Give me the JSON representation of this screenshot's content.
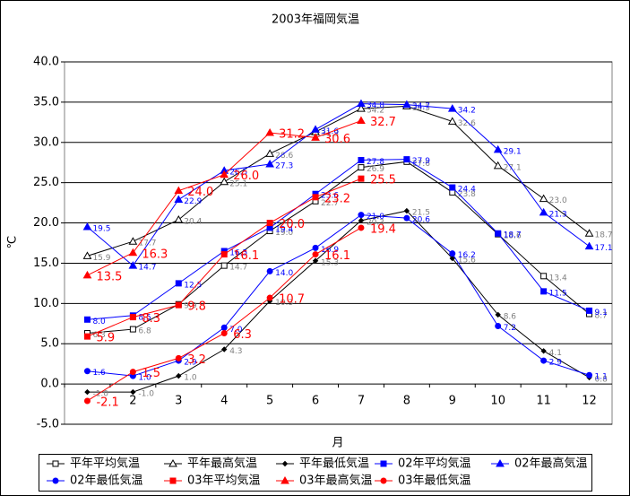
{
  "chart_data": {
    "type": "line",
    "title": "2003年福岡気温",
    "y_label": "℃",
    "x_label": "月",
    "categories": [
      null,
      "2",
      "3",
      "4",
      "5",
      "6",
      "7",
      "8",
      "9",
      "10",
      "11",
      "12"
    ],
    "ylim": [
      -5,
      40
    ],
    "yticks": [
      {
        "value": -5,
        "label": "-5.0"
      },
      {
        "value": 0,
        "label": "0.0"
      },
      {
        "value": 5,
        "label": "5.0"
      },
      {
        "value": 10,
        "label": "10.0"
      },
      {
        "value": 15,
        "label": "15.0"
      },
      {
        "value": 20,
        "label": "20.0"
      },
      {
        "value": 25,
        "label": "25.0"
      },
      {
        "value": 30,
        "label": "30.0"
      },
      {
        "value": 35,
        "label": "35.0"
      },
      {
        "value": 40,
        "label": "40.0"
      }
    ],
    "grid": true,
    "series": [
      {
        "name": "平年平均気温",
        "color": "#000000",
        "marker": "square-open",
        "values": [
          6.3,
          6.8,
          9.9,
          14.7,
          19.0,
          22.7,
          26.9,
          27.6,
          23.8,
          18.6,
          13.4,
          8.7
        ],
        "value_labels": [
          "6.3",
          "6.8",
          "9.9",
          "14.7",
          "19.0",
          "22.7",
          "26.9",
          "27.6",
          "23.8",
          "18.6",
          "13.4",
          "8.7"
        ]
      },
      {
        "name": "平年最高気温",
        "color": "#000000",
        "marker": "triangle-open",
        "values": [
          15.9,
          17.7,
          20.4,
          25.1,
          28.6,
          31.3,
          34.2,
          34.5,
          32.6,
          27.1,
          23.0,
          18.7
        ],
        "value_labels": [
          "15.9",
          "17.7",
          "20.4",
          "25.1",
          "28.6",
          "31.3",
          "34.2",
          "34.5",
          "32.6",
          "27.1",
          "23.0",
          "18.7"
        ]
      },
      {
        "name": "平年最低気温",
        "color": "#000000",
        "marker": "diamond",
        "values": [
          -1.0,
          -1.0,
          1.0,
          4.3,
          10.3,
          15.3,
          20.3,
          21.5,
          15.6,
          8.6,
          4.1,
          0.8
        ],
        "value_labels": [
          "-1.0",
          "-1.0",
          "1.0",
          "4.3",
          "10.3",
          "15.3",
          "20.3",
          "21.5",
          "15.6",
          "8.6",
          "4.1",
          "0.8"
        ]
      },
      {
        "name": "02年平均気温",
        "color": "#0000ff",
        "marker": "square",
        "values": [
          8.0,
          8.5,
          12.5,
          16.5,
          19.4,
          23.6,
          27.8,
          27.9,
          24.4,
          18.7,
          11.5,
          9.1
        ],
        "value_labels": [
          "8.0",
          "8.5",
          "12.5",
          "16.5",
          "19.4",
          "23.6",
          "27.8",
          "27.9",
          "24.4",
          "18.7",
          "11.5",
          "9.1"
        ]
      },
      {
        "name": "02年最高気温",
        "color": "#0000ff",
        "marker": "triangle",
        "values": [
          19.5,
          14.7,
          22.9,
          26.5,
          27.3,
          31.6,
          34.8,
          34.7,
          34.2,
          29.1,
          21.3,
          17.1
        ],
        "value_labels": [
          "19.5",
          "14.7",
          "22.9",
          "26.5",
          "27.3",
          "31.6",
          "34.8",
          "34.7",
          "34.2",
          "29.1",
          "21.3",
          "17.1"
        ]
      },
      {
        "name": "02年最低気温",
        "color": "#0000ff",
        "marker": "circle",
        "values": [
          1.6,
          1.0,
          2.9,
          7.0,
          14.0,
          16.9,
          21.0,
          20.6,
          16.2,
          7.2,
          2.9,
          1.1
        ],
        "value_labels": [
          "1.6",
          "1.0",
          "2.9",
          "7.0",
          "14.0",
          "16.9",
          "21.0",
          "20.6",
          "16.2",
          "7.2",
          "2.9",
          "1.1"
        ]
      },
      {
        "name": "03年平均気温",
        "color": "#ff0000",
        "marker": "square",
        "values": [
          5.9,
          8.3,
          9.8,
          16.1,
          20.0,
          23.2,
          25.5,
          null,
          null,
          null,
          null,
          null
        ],
        "value_labels": [
          "5.9",
          "8.3",
          "9.8",
          "16.1",
          "20.0",
          "23.2",
          "25.5",
          null,
          null,
          null,
          null,
          null
        ]
      },
      {
        "name": "03年最高気温",
        "color": "#ff0000",
        "marker": "triangle",
        "values": [
          13.5,
          16.3,
          24.0,
          26.0,
          31.2,
          30.6,
          32.7,
          null,
          null,
          null,
          null,
          null
        ],
        "value_labels": [
          "13.5",
          "16.3",
          "24.0",
          "26.0",
          "31.2",
          "30.6",
          "32.7",
          null,
          null,
          null,
          null,
          null
        ]
      },
      {
        "name": "03年最低気温",
        "color": "#ff0000",
        "marker": "circle",
        "values": [
          -2.1,
          1.5,
          3.2,
          6.3,
          10.7,
          16.1,
          19.4,
          null,
          null,
          null,
          null,
          null
        ],
        "value_labels": [
          "-2.1",
          "1.5",
          "3.2",
          "6.3",
          "10.7",
          "16.1",
          "19.4",
          null,
          null,
          null,
          null,
          null
        ]
      }
    ]
  }
}
